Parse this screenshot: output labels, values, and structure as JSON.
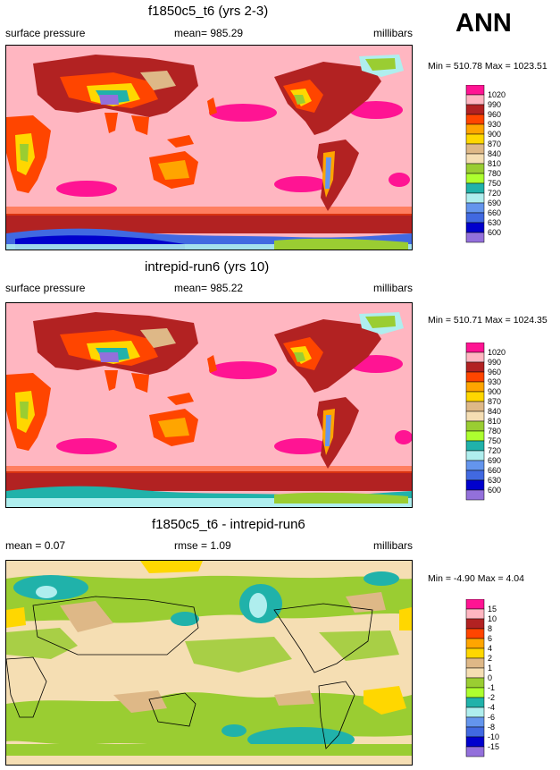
{
  "season": "ANN",
  "panels": [
    {
      "title": "f1850c5_t6 (yrs 2-3)",
      "left_label": "surface pressure",
      "center_label": "mean= 985.29",
      "right_label": "millibars",
      "minmax": "Min = 510.78 Max = 1023.51",
      "legend": [
        "1020",
        "990",
        "960",
        "930",
        "900",
        "870",
        "840",
        "810",
        "780",
        "750",
        "720",
        "690",
        "660",
        "630",
        "600"
      ]
    },
    {
      "title": "intrepid-run6 (yrs 10)",
      "left_label": "surface pressure",
      "center_label": "mean= 985.22",
      "right_label": "millibars",
      "minmax": "Min = 510.71 Max = 1024.35",
      "legend": [
        "1020",
        "990",
        "960",
        "930",
        "900",
        "870",
        "840",
        "810",
        "780",
        "750",
        "720",
        "690",
        "660",
        "630",
        "600"
      ]
    },
    {
      "title": "f1850c5_t6 - intrepid-run6",
      "left_label": "mean =  0.07",
      "center_label": "rmse =   1.09",
      "right_label": "millibars",
      "minmax": "Min =  -4.90 Max =   4.04",
      "legend": [
        "15",
        "10",
        "8",
        "6",
        "4",
        "2",
        "1",
        "0",
        "-1",
        "-2",
        "-4",
        "-6",
        "-8",
        "-10",
        "-15"
      ]
    }
  ],
  "colors": {
    "abs_ramp": [
      "#ff1493",
      "#ffb6c1",
      "#b22222",
      "#ff4500",
      "#ffa500",
      "#ffd700",
      "#deb887",
      "#f5deb3",
      "#9acd32",
      "#adff2f",
      "#20b2aa",
      "#afeeee",
      "#6495ed",
      "#4169e1",
      "#0000cd",
      "#9370db"
    ],
    "diff_ramp": [
      "#ff1493",
      "#ffb6c1",
      "#b22222",
      "#ff4500",
      "#ffa500",
      "#ffd700",
      "#deb887",
      "#f5deb3",
      "#9acd32",
      "#adff2f",
      "#20b2aa",
      "#afeeee",
      "#6495ed",
      "#4169e1",
      "#0000cd",
      "#9370db"
    ]
  },
  "chart_data": [
    {
      "type": "heatmap",
      "title": "f1850c5_t6 (yrs 2-3)",
      "variable": "surface pressure",
      "units": "millibars",
      "mean": 985.29,
      "min": 510.78,
      "max": 1023.51,
      "contour_levels": [
        600,
        630,
        660,
        690,
        720,
        750,
        780,
        810,
        840,
        870,
        900,
        930,
        960,
        990,
        1020
      ]
    },
    {
      "type": "heatmap",
      "title": "intrepid-run6 (yrs 10)",
      "variable": "surface pressure",
      "units": "millibars",
      "mean": 985.22,
      "min": 510.71,
      "max": 1024.35,
      "contour_levels": [
        600,
        630,
        660,
        690,
        720,
        750,
        780,
        810,
        840,
        870,
        900,
        930,
        960,
        990,
        1020
      ]
    },
    {
      "type": "heatmap",
      "title": "f1850c5_t6 - intrepid-run6",
      "units": "millibars",
      "mean": 0.07,
      "rmse": 1.09,
      "min": -4.9,
      "max": 4.04,
      "contour_levels": [
        -15,
        -10,
        -8,
        -6,
        -4,
        -2,
        -1,
        0,
        1,
        2,
        4,
        6,
        8,
        10,
        15
      ]
    }
  ]
}
